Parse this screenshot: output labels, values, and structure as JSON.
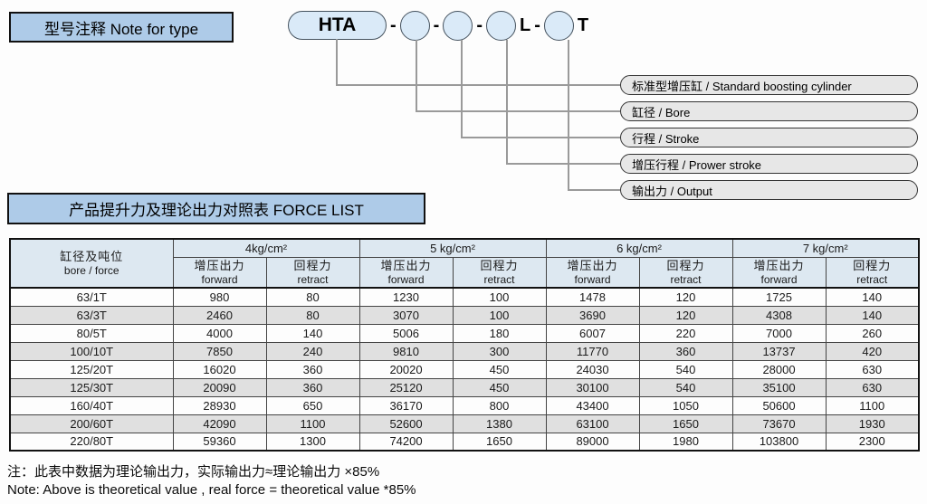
{
  "colors": {
    "title_box_bg": "#aecbe8",
    "shape_fill": "#daeaf8",
    "callout_bg": "#e7e7e7",
    "table_header_bg": "#dde8f1",
    "row_stripe_bg": "#e0e0e0",
    "connector_line": "#9a9a9a"
  },
  "note_for_type": {
    "title": "型号注释 Note for type",
    "model": {
      "prefix": "HTA",
      "separator": "-",
      "suffix_mid": "L",
      "suffix_end": "T"
    },
    "callouts": [
      "标准型增压缸 / Standard boosting cylinder",
      "缸径 / Bore",
      "行程 / Stroke",
      "增压行程 / Prower stroke",
      "输出力 / Output"
    ]
  },
  "force_list": {
    "title": "产品提升力及理论出力对照表 FORCE LIST",
    "table": {
      "corner_header": [
        "缸径及吨位",
        "bore / force"
      ],
      "pressure_groups": [
        "4kg/cm²",
        "5 kg/cm²",
        "6 kg/cm²",
        "7 kg/cm²"
      ],
      "forward_header": [
        "增压出力",
        "forward"
      ],
      "retract_header": [
        "回程力",
        "retract"
      ],
      "rows": [
        {
          "bore": "63/1T",
          "values": [
            "980",
            "80",
            "1230",
            "100",
            "1478",
            "120",
            "1725",
            "140"
          ]
        },
        {
          "bore": "63/3T",
          "values": [
            "2460",
            "80",
            "3070",
            "100",
            "3690",
            "120",
            "4308",
            "140"
          ]
        },
        {
          "bore": "80/5T",
          "values": [
            "4000",
            "140",
            "5006",
            "180",
            "6007",
            "220",
            "7000",
            "260"
          ]
        },
        {
          "bore": "100/10T",
          "values": [
            "7850",
            "240",
            "9810",
            "300",
            "11770",
            "360",
            "13737",
            "420"
          ]
        },
        {
          "bore": "125/20T",
          "values": [
            "16020",
            "360",
            "20020",
            "450",
            "24030",
            "540",
            "28000",
            "630"
          ]
        },
        {
          "bore": "125/30T",
          "values": [
            "20090",
            "360",
            "25120",
            "450",
            "30100",
            "540",
            "35100",
            "630"
          ]
        },
        {
          "bore": "160/40T",
          "values": [
            "28930",
            "650",
            "36170",
            "800",
            "43400",
            "1050",
            "50600",
            "1100"
          ]
        },
        {
          "bore": "200/60T",
          "values": [
            "42090",
            "1100",
            "52600",
            "1380",
            "63100",
            "1650",
            "73670",
            "1930"
          ]
        },
        {
          "bore": "220/80T",
          "values": [
            "59360",
            "1300",
            "74200",
            "1650",
            "89000",
            "1980",
            "103800",
            "2300"
          ]
        }
      ]
    }
  },
  "footnote": {
    "line1": "注：此表中数据为理论输出力，实际输出力≈理论输出力 ×85%",
    "line2": "Note: Above is theoretical value , real force = theoretical value *85%"
  }
}
